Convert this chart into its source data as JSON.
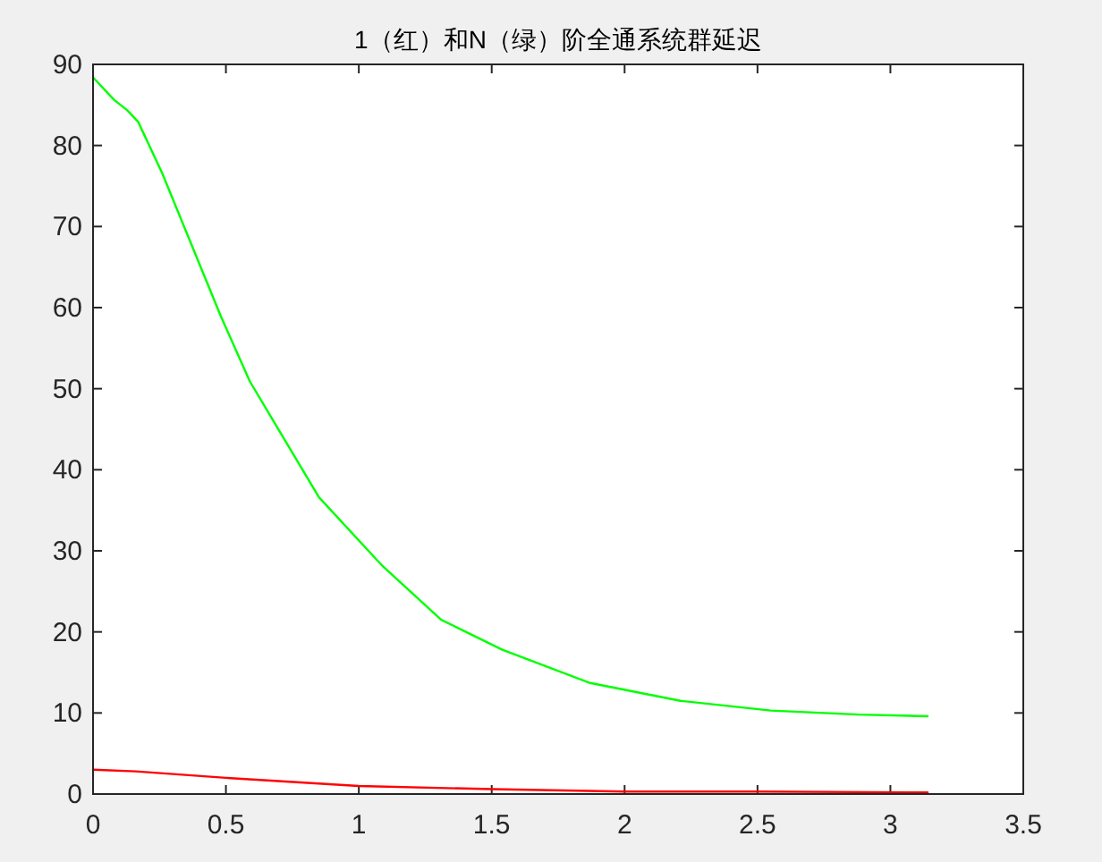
{
  "chart_data": {
    "type": "line",
    "title": "1（红）和N（绿）阶全通系统群延迟",
    "xlim": [
      0,
      3.5
    ],
    "ylim": [
      0,
      90
    ],
    "xticks": [
      0,
      0.5,
      1,
      1.5,
      2,
      2.5,
      3,
      3.5
    ],
    "yticks": [
      0,
      10,
      20,
      30,
      40,
      50,
      60,
      70,
      80,
      90
    ],
    "marker": "none",
    "line_style": "solid",
    "series": [
      {
        "color": "#ff0000",
        "x": [
          0,
          0.16,
          0.5,
          1.0,
          1.5,
          2.0,
          2.5,
          3.14
        ],
        "values": [
          3.0,
          2.8,
          2.0,
          1.0,
          0.6,
          0.3,
          0.3,
          0.2
        ]
      },
      {
        "color": "#00ff00",
        "x": [
          0,
          0.08,
          0.13,
          0.17,
          0.26,
          0.37,
          0.48,
          0.59,
          0.71,
          0.85,
          1.09,
          1.31,
          1.54,
          1.87,
          2.21,
          2.55,
          2.88,
          3.14
        ],
        "values": [
          88.4,
          85.6,
          84.3,
          82.9,
          76.6,
          67.8,
          59.0,
          50.9,
          44.3,
          36.6,
          28.1,
          21.5,
          17.8,
          13.7,
          11.5,
          10.3,
          9.8,
          9.6
        ]
      }
    ]
  }
}
